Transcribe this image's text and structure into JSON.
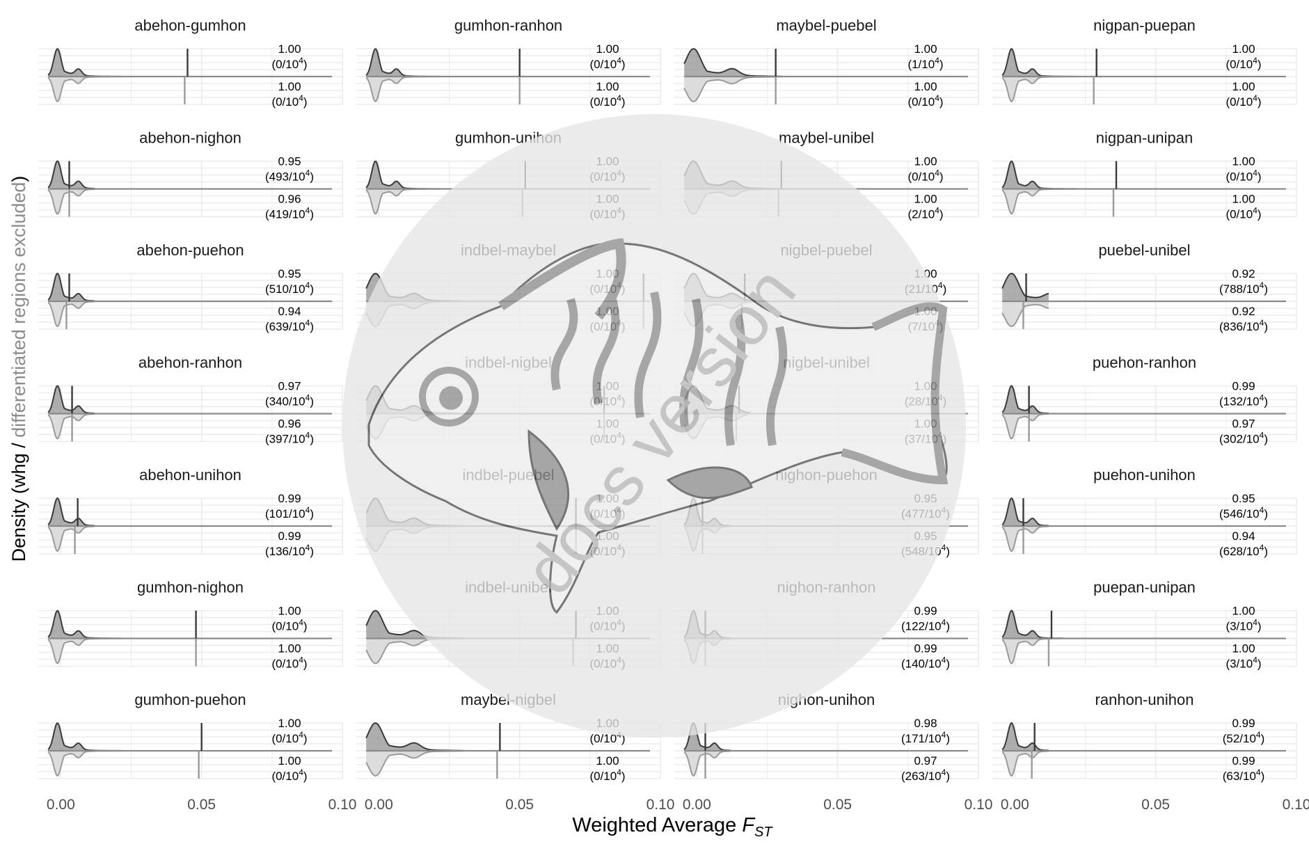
{
  "chart_data": {
    "type": "density-grid",
    "xlabel_main": "Weighted Average ",
    "xlabel_sub": "ST",
    "xlabel_var": "F",
    "ylabel_prefix": "Density (whg / ",
    "ylabel_grey": "differentiated regions excluded",
    "ylabel_suffix": ")",
    "xlim": [
      -0.008,
      0.1
    ],
    "x_ticks": [
      0.0,
      0.05,
      0.1
    ],
    "x_tick_labels": [
      "0.00",
      "0.05",
      "0.10"
    ],
    "grid_columns": 4,
    "grid_rows": 7,
    "panels": [
      {
        "name": "abehon-gumhon",
        "col": 0,
        "row": 0,
        "fst_top": 0.045,
        "fst_bottom": 0.044,
        "width": 0.0045,
        "top_value": "1.00",
        "top_count": "(0/10",
        "bottom_value": "1.00",
        "bottom_count": "(0/10"
      },
      {
        "name": "abehon-nighon",
        "col": 0,
        "row": 1,
        "fst_top": 0.003,
        "fst_bottom": 0.003,
        "width": 0.0045,
        "top_value": "0.95",
        "top_count": "(493/10",
        "bottom_value": "0.96",
        "bottom_count": "(419/10"
      },
      {
        "name": "abehon-puehon",
        "col": 0,
        "row": 2,
        "fst_top": 0.003,
        "fst_bottom": 0.002,
        "width": 0.0045,
        "top_value": "0.95",
        "top_count": "(510/10",
        "bottom_value": "0.94",
        "bottom_count": "(639/10"
      },
      {
        "name": "abehon-ranhon",
        "col": 0,
        "row": 3,
        "fst_top": 0.004,
        "fst_bottom": 0.004,
        "width": 0.0045,
        "top_value": "0.97",
        "top_count": "(340/10",
        "bottom_value": "0.96",
        "bottom_count": "(397/10"
      },
      {
        "name": "abehon-unihon",
        "col": 0,
        "row": 4,
        "fst_top": 0.006,
        "fst_bottom": 0.005,
        "width": 0.0045,
        "top_value": "0.99",
        "top_count": "(101/10",
        "bottom_value": "0.99",
        "bottom_count": "(136/10"
      },
      {
        "name": "gumhon-nighon",
        "col": 0,
        "row": 5,
        "fst_top": 0.048,
        "fst_bottom": 0.048,
        "width": 0.0045,
        "top_value": "1.00",
        "top_count": "(0/10",
        "bottom_value": "1.00",
        "bottom_count": "(0/10"
      },
      {
        "name": "gumhon-puehon",
        "col": 0,
        "row": 6,
        "fst_top": 0.05,
        "fst_bottom": 0.049,
        "width": 0.0045,
        "top_value": "1.00",
        "top_count": "(0/10",
        "bottom_value": "1.00",
        "bottom_count": "(0/10"
      },
      {
        "name": "gumhon-ranhon",
        "col": 1,
        "row": 0,
        "fst_top": 0.05,
        "fst_bottom": 0.05,
        "width": 0.0045,
        "top_value": "1.00",
        "top_count": "(0/10",
        "bottom_value": "1.00",
        "bottom_count": "(0/10"
      },
      {
        "name": "gumhon-unihon",
        "col": 1,
        "row": 1,
        "fst_top": 0.052,
        "fst_bottom": 0.051,
        "width": 0.0045,
        "top_value": "1.00",
        "top_count": "(0/10",
        "bottom_value": "1.00",
        "bottom_count": "(0/10"
      },
      {
        "name": "indbel-maybel",
        "col": 1,
        "row": 2,
        "fst_top": 0.094,
        "fst_bottom": 0.094,
        "width": 0.009,
        "top_value": "1.00",
        "top_count": "(0/10",
        "bottom_value": "1.00",
        "bottom_count": "(0/10"
      },
      {
        "name": "indbel-nigbel",
        "col": 1,
        "row": 3,
        "fst_top": 0.08,
        "fst_bottom": 0.08,
        "width": 0.009,
        "top_value": "1.00",
        "top_count": "(0/10",
        "bottom_value": "1.00",
        "bottom_count": "(0/10"
      },
      {
        "name": "indbel-puebel",
        "col": 1,
        "row": 4,
        "fst_top": 0.07,
        "fst_bottom": 0.07,
        "width": 0.009,
        "top_value": "1.00",
        "top_count": "(0/10",
        "bottom_value": "1.00",
        "bottom_count": "(0/10"
      },
      {
        "name": "indbel-unibel",
        "col": 1,
        "row": 5,
        "fst_top": 0.07,
        "fst_bottom": 0.069,
        "width": 0.009,
        "top_value": "1.00",
        "top_count": "(0/10",
        "bottom_value": "1.00",
        "bottom_count": "(0/10"
      },
      {
        "name": "maybel-nigbel",
        "col": 1,
        "row": 6,
        "fst_top": 0.043,
        "fst_bottom": 0.042,
        "width": 0.009,
        "top_value": "1.00",
        "top_count": "(0/10",
        "bottom_value": "1.00",
        "bottom_count": "(0/10"
      },
      {
        "name": "maybel-puebel",
        "col": 2,
        "row": 0,
        "fst_top": 0.028,
        "fst_bottom": 0.028,
        "width": 0.009,
        "top_value": "1.00",
        "top_count": "(1/10",
        "bottom_value": "1.00",
        "bottom_count": "(0/10"
      },
      {
        "name": "maybel-unibel",
        "col": 2,
        "row": 1,
        "fst_top": 0.03,
        "fst_bottom": 0.029,
        "width": 0.009,
        "top_value": "1.00",
        "top_count": "(0/10",
        "bottom_value": "1.00",
        "bottom_count": "(2/10"
      },
      {
        "name": "nigbel-puebel",
        "col": 2,
        "row": 2,
        "fst_top": 0.017,
        "fst_bottom": 0.016,
        "width": 0.009,
        "top_value": "1.00",
        "top_count": "(21/10",
        "bottom_value": "1.00",
        "bottom_count": "(7/10"
      },
      {
        "name": "nigbel-unibel",
        "col": 2,
        "row": 3,
        "fst_top": 0.015,
        "fst_bottom": 0.014,
        "width": 0.009,
        "top_value": "1.00",
        "top_count": "(28/10",
        "bottom_value": "1.00",
        "bottom_count": "(37/10"
      },
      {
        "name": "nighon-puehon",
        "col": 2,
        "row": 4,
        "fst_top": 0.002,
        "fst_bottom": 0.002,
        "width": 0.0045,
        "top_value": "0.95",
        "top_count": "(477/10",
        "bottom_value": "0.95",
        "bottom_count": "(548/10"
      },
      {
        "name": "nighon-ranhon",
        "col": 2,
        "row": 5,
        "fst_top": 0.003,
        "fst_bottom": 0.003,
        "width": 0.0045,
        "top_value": "0.99",
        "top_count": "(122/10",
        "bottom_value": "0.99",
        "bottom_count": "(140/10"
      },
      {
        "name": "nighon-unihon",
        "col": 2,
        "row": 6,
        "fst_top": 0.003,
        "fst_bottom": 0.003,
        "width": 0.0045,
        "top_value": "0.98",
        "top_count": "(171/10",
        "bottom_value": "0.97",
        "bottom_count": "(263/10"
      },
      {
        "name": "nigpan-puepan",
        "col": 3,
        "row": 0,
        "fst_top": 0.029,
        "fst_bottom": 0.028,
        "width": 0.0045,
        "top_value": "1.00",
        "top_count": "(0/10",
        "bottom_value": "1.00",
        "bottom_count": "(0/10"
      },
      {
        "name": "nigpan-unipan",
        "col": 3,
        "row": 1,
        "fst_top": 0.036,
        "fst_bottom": 0.035,
        "width": 0.0045,
        "top_value": "1.00",
        "top_count": "(0/10",
        "bottom_value": "1.00",
        "bottom_count": "(0/10"
      },
      {
        "name": "puebel-unibel",
        "col": 3,
        "row": 2,
        "fst_top": 0.004,
        "fst_bottom": 0.003,
        "width": 0.009,
        "top_value": "0.92",
        "top_count": "(788/10",
        "bottom_value": "0.92",
        "bottom_count": "(836/10"
      },
      {
        "name": "puehon-ranhon",
        "col": 3,
        "row": 3,
        "fst_top": 0.005,
        "fst_bottom": 0.005,
        "width": 0.0045,
        "top_value": "0.99",
        "top_count": "(132/10",
        "bottom_value": "0.97",
        "bottom_count": "(302/10"
      },
      {
        "name": "puehon-unihon",
        "col": 3,
        "row": 4,
        "fst_top": 0.003,
        "fst_bottom": 0.003,
        "width": 0.0045,
        "top_value": "0.95",
        "top_count": "(546/10",
        "bottom_value": "0.94",
        "bottom_count": "(628/10"
      },
      {
        "name": "puepan-unipan",
        "col": 3,
        "row": 5,
        "fst_top": 0.013,
        "fst_bottom": 0.012,
        "width": 0.0045,
        "top_value": "1.00",
        "top_count": "(3/10",
        "bottom_value": "1.00",
        "bottom_count": "(3/10"
      },
      {
        "name": "ranhon-unihon",
        "col": 3,
        "row": 6,
        "fst_top": 0.007,
        "fst_bottom": 0.006,
        "width": 0.0045,
        "top_value": "0.99",
        "top_count": "(52/10",
        "bottom_value": "0.99",
        "bottom_count": "(63/10"
      }
    ],
    "count_exponent": "4",
    "count_close": ")",
    "grid": true,
    "colors": {
      "top_line": "#3a3a3a",
      "top_fill": "#9a9a9a",
      "bottom_line": "#9a9a9a",
      "bottom_fill": "#dcdcdc",
      "grid": "#ebebeb",
      "baseline": "#8a8a8a",
      "title_text": "#1a1a1a",
      "label_text": "#000000",
      "axis_text": "#4d4d4d",
      "ylabel_grey": "#8c8c8c",
      "watermark_disc": "#e6e6e6",
      "watermark_text": "#b5b5b5",
      "fish_stroke": "#505050",
      "fish_band": "#8e8e8e"
    },
    "watermark_text": "docs version"
  }
}
